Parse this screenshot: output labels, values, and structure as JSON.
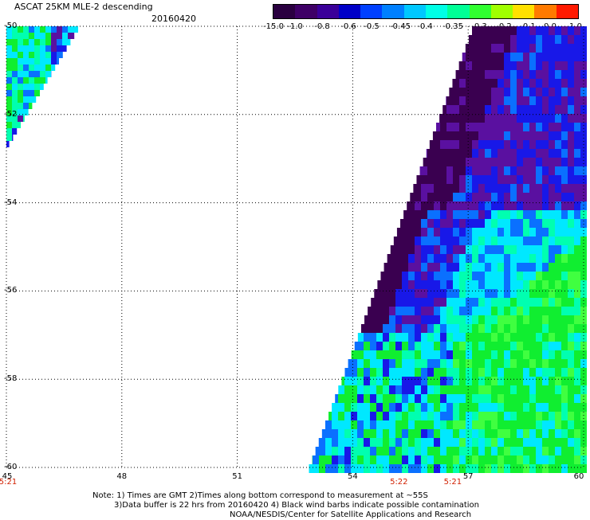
{
  "header": {
    "title": "ASCAT 25KM MLE-2 descending",
    "date": "20160420"
  },
  "colorbar": {
    "tick_labels": [
      "-15.0",
      "-1.0",
      "-0.8",
      "-0.6",
      "-0.5",
      "-0.45",
      "-0.4",
      "-0.35",
      "-0.3",
      "-0.2",
      "-0.1",
      "0.0",
      "1.0"
    ],
    "colors": [
      "#2a0040",
      "#3e0066",
      "#3a0099",
      "#0000c8",
      "#0040ff",
      "#0080ff",
      "#00c8ff",
      "#00ffe6",
      "#00ff96",
      "#30ff30",
      "#a0ff00",
      "#ffe000",
      "#ff7a00",
      "#ff1a00"
    ]
  },
  "map": {
    "x_tick_labels": [
      "45",
      "48",
      "51",
      "54",
      "57",
      "60"
    ],
    "y_tick_labels": [
      "-50",
      "-52",
      "-54",
      "-56",
      "-58",
      "-60"
    ],
    "time_labels": [
      "5:21",
      "5:22",
      "5:21"
    ],
    "grid": "dotted",
    "palette": {
      "deep_purple": "#3a0050",
      "purple": "#5a10a0",
      "blue": "#1818e8",
      "light_blue": "#0a70ff",
      "cyan": "#00e8ff",
      "aqua_green": "#00ffb0",
      "green": "#10ee30",
      "light_green": "#40ff40"
    }
  },
  "chart_data": {
    "type": "heatmap",
    "title": "ASCAT 25KM MLE-2 descending",
    "date": "20160420",
    "x": [
      45,
      48,
      51,
      54,
      57,
      60
    ],
    "y": [
      -50,
      -52,
      -54,
      -56,
      -58,
      -60
    ],
    "xlim": [
      45,
      60
    ],
    "ylim": [
      -60,
      -50
    ],
    "color_scale": [
      -15.0,
      -1.0,
      -0.8,
      -0.6,
      -0.5,
      -0.45,
      -0.4,
      -0.35,
      -0.3,
      -0.2,
      -0.1,
      0.0,
      1.0
    ],
    "time_labels": [
      {
        "lon": 45,
        "time": "5:21"
      },
      {
        "lon": 55.2,
        "time": "5:22"
      },
      {
        "lon": 56.6,
        "time": "5:21"
      }
    ]
  },
  "note": {
    "line1": "Note: 1) Times are GMT 2)Times along bottom correspond to measurement at ~55S",
    "line2": "3)Data buffer is 22 hrs from 20160420 4) Black wind barbs indicate possible contamination",
    "line3": "NOAA/NESDIS/Center for Satellite Applications and Research"
  }
}
